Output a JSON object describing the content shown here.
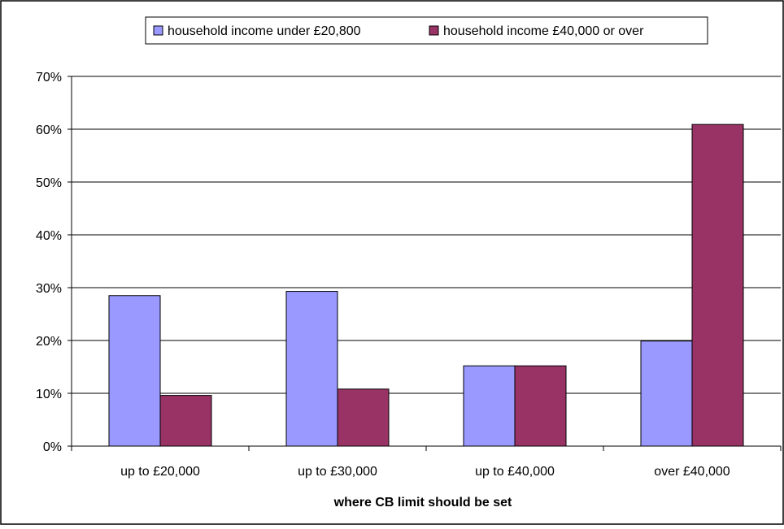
{
  "chart_data": {
    "type": "bar",
    "categories": [
      "up to £20,000",
      "up to £30,000",
      "up to £40,000",
      "over £40,000"
    ],
    "series": [
      {
        "name": "household income under £20,800",
        "color": "#9999ff",
        "values": [
          28.5,
          29.3,
          15.2,
          19.9
        ]
      },
      {
        "name": "household income £40,000 or over",
        "color": "#993366",
        "values": [
          9.6,
          10.8,
          15.2,
          60.9
        ]
      }
    ],
    "xlabel": "where CB limit should be set",
    "ylabel": "",
    "ylim": [
      0,
      70
    ],
    "yticks": [
      0,
      10,
      20,
      30,
      40,
      50,
      60,
      70
    ],
    "ytick_labels": [
      "0%",
      "10%",
      "20%",
      "30%",
      "40%",
      "50%",
      "60%",
      "70%"
    ],
    "grid": true,
    "legend": "top-center"
  }
}
